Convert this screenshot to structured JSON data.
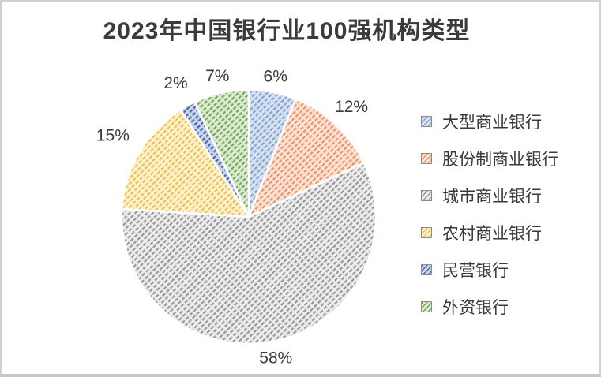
{
  "window": {
    "background": "#ffffff",
    "border_color": "#d2d0cc"
  },
  "chart_data": {
    "type": "pie",
    "title": "2023年中国银行业100强机构类型",
    "unit": "percent",
    "legend_position": "right",
    "grid": false,
    "pattern_fill": "dashed-upward-diagonal",
    "title_color": "#3b3b3b",
    "label_color": "#3a3a3a",
    "slice_gap_color": "#ffffff",
    "slices": [
      {
        "label": "大型商业银行",
        "value": 6,
        "pct_label": "6%",
        "fill_bg": "#d6e2f2",
        "fill_fg": "#84a2cc"
      },
      {
        "label": "股份制商业银行",
        "value": 12,
        "pct_label": "12%",
        "fill_bg": "#fbe3d5",
        "fill_fg": "#ec9066"
      },
      {
        "label": "城市商业银行",
        "value": 58,
        "pct_label": "58%",
        "fill_bg": "#edecec",
        "fill_fg": "#989696"
      },
      {
        "label": "农村商业银行",
        "value": 15,
        "pct_label": "15%",
        "fill_bg": "#fdf2cf",
        "fill_fg": "#edbf4a"
      },
      {
        "label": "民营银行",
        "value": 2,
        "pct_label": "2%",
        "fill_bg": "#c9d5ec",
        "fill_fg": "#4d67a6"
      },
      {
        "label": "外资银行",
        "value": 7,
        "pct_label": "7%",
        "fill_bg": "#dcecd2",
        "fill_fg": "#76a458"
      }
    ]
  }
}
